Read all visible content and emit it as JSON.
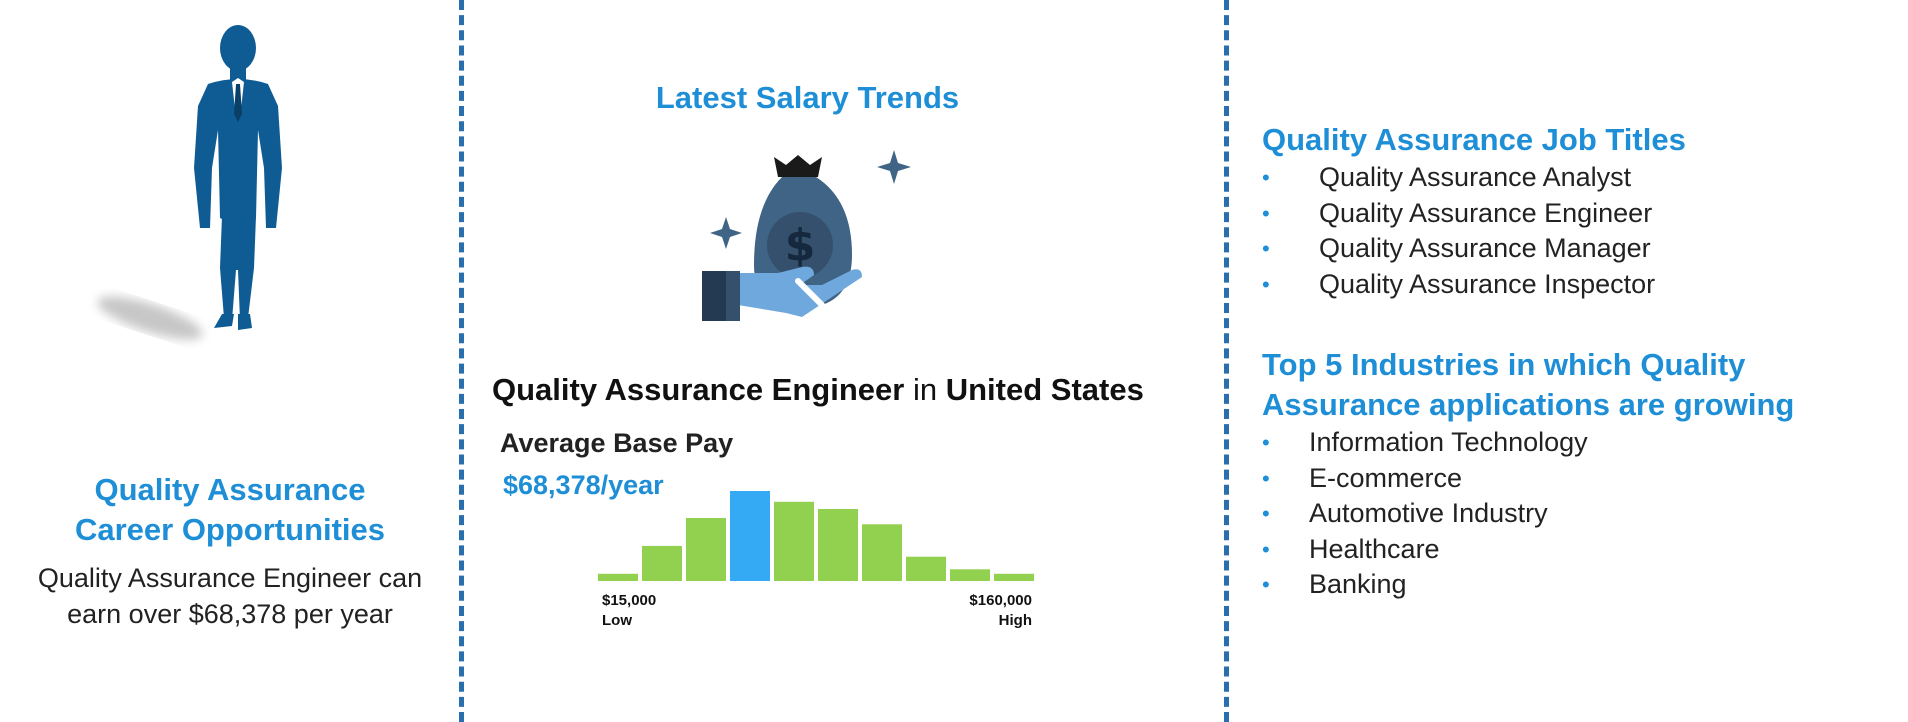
{
  "left": {
    "career_title_line1": "Quality Assurance",
    "career_title_line2": "Career Opportunities",
    "career_text_line1": "Quality Assurance Engineer can",
    "career_text_line2": "earn over $68,378 per year"
  },
  "middle": {
    "trends_title": "Latest Salary Trends",
    "job_heading_role": "Quality Assurance Engineer",
    "job_heading_in": "in",
    "job_heading_location": "United States",
    "average_label": "Average Base Pay",
    "average_value": "$68,378/year",
    "low_value": "$15,000",
    "low_label": "Low",
    "high_value": "$160,000",
    "high_label": "High",
    "histogram": {
      "relative_heights": [
        0.08,
        0.39,
        0.7,
        1.0,
        0.88,
        0.8,
        0.63,
        0.27,
        0.13,
        0.08
      ],
      "highlight_index": 3,
      "bar_color": "#92d050",
      "highlight_color": "#35aaf4"
    }
  },
  "right": {
    "jobs_title": "Quality Assurance Job Titles",
    "jobs": [
      "Quality Assurance Analyst",
      "Quality Assurance Engineer",
      "Quality Assurance Manager",
      "Quality Assurance Inspector"
    ],
    "industries_title_line1": "Top 5 Industries in which Quality",
    "industries_title_line2": "Assurance applications are growing",
    "industries": [
      "Information Technology",
      "E-commerce",
      "Automotive Industry",
      "Healthcare",
      "Banking"
    ]
  },
  "icons": {
    "person": "businessman-silhouette-icon",
    "money": "money-bag-hand-icon",
    "bullet": "•"
  },
  "colors": {
    "accent": "#1e8fd6",
    "divider": "#2a6fad",
    "figure": "#0f5c95"
  }
}
